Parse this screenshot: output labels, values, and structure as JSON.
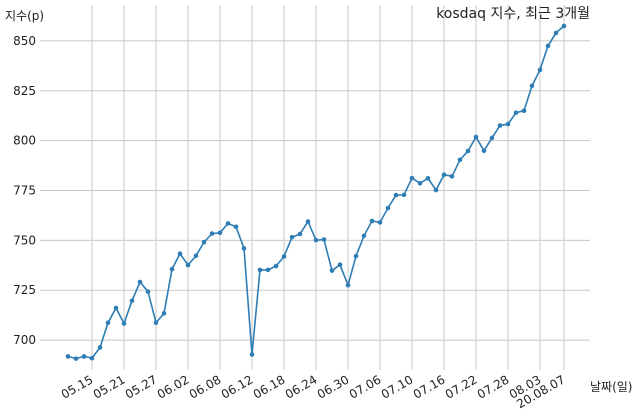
{
  "chart_data": {
    "type": "line",
    "title": "kosdaq 지수, 최근 3개월",
    "ylabel": "지수(p)",
    "xlabel": "날짜(일)",
    "ylim": [
      685,
      868
    ],
    "yticks": [
      700,
      725,
      750,
      775,
      800,
      825,
      850
    ],
    "grid": true,
    "x_tick_labels": [
      "05.15",
      "05.21",
      "05.27",
      "06.02",
      "06.08",
      "06.12",
      "06.18",
      "06.24",
      "06.30",
      "07.06",
      "07.10",
      "07.16",
      "07.22",
      "07.28",
      "08.03",
      "20.08.07"
    ],
    "x_tick_indices": [
      3,
      7,
      11,
      15,
      19,
      23,
      27,
      31,
      35,
      39,
      43,
      47,
      51,
      55,
      59,
      62
    ],
    "series": [
      {
        "values": [
          691.8,
          690.7,
          691.8,
          690.9,
          696.3,
          708.7,
          716.1,
          708.3,
          719.7,
          729.1,
          724.3,
          708.7,
          713.4,
          735.6,
          743.3,
          737.6,
          742.3,
          749.1,
          753.4,
          753.8,
          758.5,
          756.8,
          746.0,
          692.8,
          735.2,
          735.2,
          737.1,
          741.9,
          751.6,
          753.2,
          759.4,
          750.1,
          750.4,
          734.8,
          737.8,
          727.5,
          742.1,
          752.3,
          759.7,
          759.0,
          766.2,
          772.7,
          772.8,
          781.2,
          778.6,
          781.1,
          775.2,
          782.9,
          782.1,
          790.4,
          794.8,
          801.8,
          794.9,
          801.4,
          807.6,
          808.3,
          814.0,
          815.0,
          827.5,
          835.5,
          847.5,
          854.0,
          857.5
        ],
        "color": "#2e7db5"
      }
    ]
  }
}
